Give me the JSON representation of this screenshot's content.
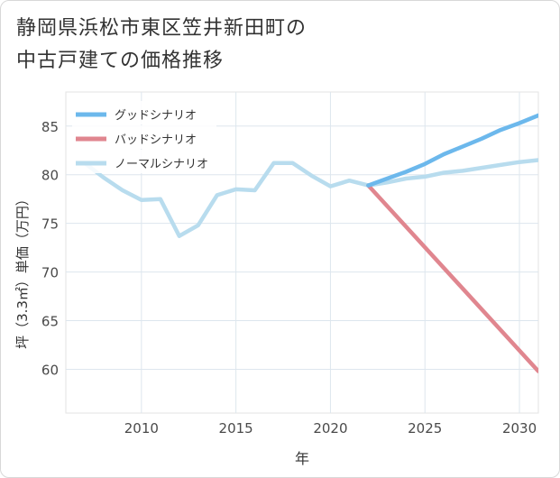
{
  "title_lines": [
    "静岡県浜松市東区笠井新田町の",
    "中古戸建ての価格推移"
  ],
  "chart_data": {
    "type": "line",
    "title": "静岡県浜松市東区笠井新田町の中古戸建ての価格推移",
    "xlabel": "年",
    "ylabel": "坪（3.3㎡）単価（万円）",
    "xlim": [
      2006,
      2031
    ],
    "ylim": [
      55.5,
      88.5
    ],
    "xticks": [
      2010,
      2015,
      2020,
      2025,
      2030
    ],
    "yticks": [
      60,
      65,
      70,
      75,
      80,
      85
    ],
    "grid": true,
    "legend_position": "top-left",
    "series": [
      {
        "name": "グッドシナリオ",
        "color": "#6cb8ec",
        "x": [
          2022,
          2023,
          2024,
          2025,
          2026,
          2027,
          2028,
          2029,
          2030,
          2031
        ],
        "y": [
          78.9,
          79.6,
          80.3,
          81.1,
          82.1,
          82.9,
          83.7,
          84.6,
          85.3,
          86.1
        ]
      },
      {
        "name": "バッドシナリオ",
        "color": "#e0868f",
        "x": [
          2022,
          2031
        ],
        "y": [
          78.9,
          59.8
        ]
      },
      {
        "name": "ノーマルシナリオ",
        "color": "#b8dcee",
        "x": [
          2007,
          2008,
          2009,
          2010,
          2011,
          2012,
          2013,
          2014,
          2015,
          2016,
          2017,
          2018,
          2019,
          2020,
          2021,
          2022,
          2023,
          2024,
          2025,
          2026,
          2027,
          2028,
          2029,
          2030,
          2031
        ],
        "y": [
          81.2,
          79.7,
          78.4,
          77.4,
          77.5,
          73.7,
          74.8,
          77.9,
          78.5,
          78.4,
          81.2,
          81.2,
          79.9,
          78.8,
          79.4,
          78.9,
          79.2,
          79.6,
          79.8,
          80.2,
          80.4,
          80.7,
          81.0,
          81.3,
          81.5
        ]
      }
    ]
  }
}
